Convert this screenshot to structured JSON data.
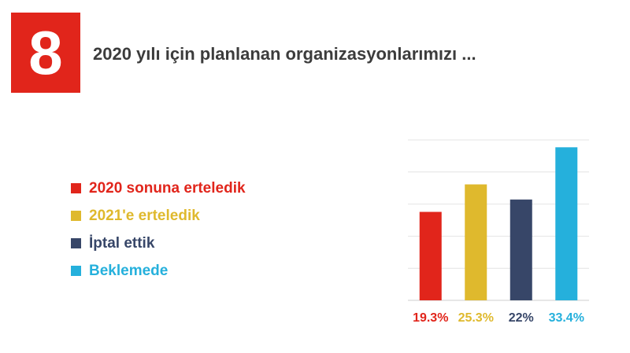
{
  "header": {
    "number": "8",
    "title": "2020 yılı için planlanan organizasyonlarımızı ..."
  },
  "colors": {
    "badge": "#e1251b",
    "grid": "#e4e4e4",
    "axis": "#cfcfcf"
  },
  "legend": [
    {
      "label": "2020 sonuna erteledik",
      "color": "#e1251b"
    },
    {
      "label": "2021'e erteledik",
      "color": "#dfb92d"
    },
    {
      "label": "İptal ettik",
      "color": "#374668"
    },
    {
      "label": "Beklemede",
      "color": "#25b0dc"
    }
  ],
  "chart_data": {
    "type": "bar",
    "categories": [
      "2020 sonuna erteledik",
      "2021'e erteledik",
      "İptal ettik",
      "Beklemede"
    ],
    "values": [
      19.3,
      25.3,
      22,
      33.4
    ],
    "value_labels": [
      "19.3%",
      "25.3%",
      "22%",
      "33.4%"
    ],
    "colors": [
      "#e1251b",
      "#dfb92d",
      "#374668",
      "#25b0dc"
    ],
    "ylim": [
      0,
      35
    ],
    "grid": true,
    "legend": "left"
  }
}
